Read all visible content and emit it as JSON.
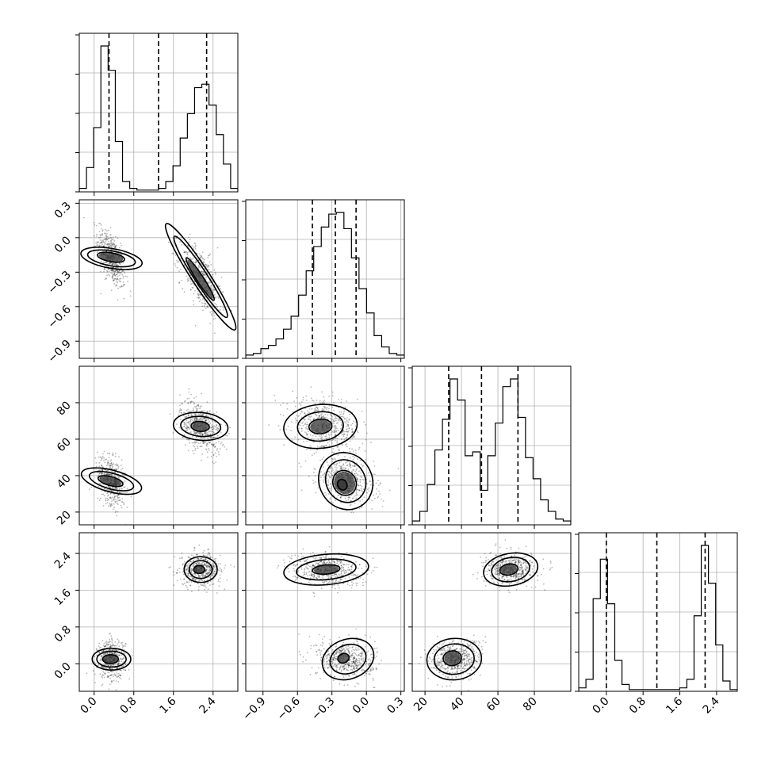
{
  "chart_data": {
    "type": "corner",
    "grid": true,
    "quantile_lines": "dashed",
    "parameters": [
      {
        "index": 0,
        "range": [
          -0.3,
          2.9
        ],
        "ticks": [
          "0.0",
          "0.8",
          "1.6",
          "2.4"
        ],
        "tick_values": [
          0.0,
          0.8,
          1.6,
          2.4
        ],
        "quantiles": [
          0.3,
          1.3,
          2.27
        ]
      },
      {
        "index": 1,
        "range": [
          -1.05,
          0.33
        ],
        "ticks": [
          "−0.9",
          "−0.6",
          "−0.3",
          "0.0",
          "0.3"
        ],
        "tick_values": [
          -0.9,
          -0.6,
          -0.3,
          0.0,
          0.3
        ],
        "quantiles": [
          -0.47,
          -0.27,
          -0.09
        ]
      },
      {
        "index": 2,
        "range": [
          13,
          100
        ],
        "ticks": [
          "20",
          "40",
          "60",
          "80"
        ],
        "tick_values": [
          20,
          40,
          60,
          80
        ],
        "quantiles": [
          33,
          51,
          71
        ]
      },
      {
        "index": 3,
        "range": [
          -0.6,
          2.85
        ],
        "ticks": [
          "0.0",
          "0.8",
          "1.6",
          "2.4"
        ],
        "tick_values": [
          0.0,
          0.8,
          1.6,
          2.4
        ],
        "quantiles": [
          0.0,
          1.1,
          2.15
        ]
      }
    ],
    "histograms": [
      {
        "param": 0,
        "values": [
          2,
          14,
          37,
          84,
          70,
          29,
          6,
          2,
          1,
          1,
          1,
          2,
          6,
          15,
          31,
          45,
          60,
          62,
          50,
          33,
          16,
          2
        ]
      },
      {
        "param": 1,
        "values": [
          2,
          3,
          6,
          8,
          12,
          18,
          26,
          39,
          54,
          69,
          81,
          89,
          90,
          80,
          62,
          43,
          28,
          14,
          7,
          3,
          2
        ]
      },
      {
        "param": 2,
        "values": [
          2,
          7,
          21,
          39,
          55,
          76,
          65,
          36,
          38,
          18,
          36,
          53,
          72,
          76,
          56,
          35,
          24,
          13,
          7,
          3,
          2
        ]
      },
      {
        "param": 3,
        "values": [
          2,
          7,
          54,
          77,
          51,
          18,
          4,
          1,
          1,
          1,
          1,
          1,
          1,
          1,
          2,
          7,
          44,
          85,
          63,
          27,
          6,
          1
        ]
      }
    ],
    "clusters": [
      {
        "mean": [
          0.35,
          -0.18,
          37,
          0.1
        ],
        "sd": [
          0.12,
          0.11,
          6,
          0.18
        ]
      },
      {
        "mean": [
          2.15,
          -0.35,
          67,
          2.05
        ],
        "sd": [
          0.18,
          0.13,
          6,
          0.15
        ]
      }
    ],
    "pair_contours": [
      {
        "col": 0,
        "row": 1,
        "levels": [
          {
            "cx": 0.35,
            "cy": -0.18,
            "rx": 0.2,
            "ry": 0.27,
            "deg": -80
          },
          {
            "cx": 0.35,
            "cy": -0.18,
            "rx": 0.15,
            "ry": 0.21,
            "deg": -80
          },
          {
            "cx": 0.34,
            "cy": -0.17,
            "rx": 0.09,
            "ry": 0.12,
            "deg": -80
          },
          {
            "cx": 2.15,
            "cy": -0.34,
            "rx": 0.18,
            "ry": 0.55,
            "deg": -33
          },
          {
            "cx": 2.15,
            "cy": -0.34,
            "rx": 0.13,
            "ry": 0.42,
            "deg": -33
          },
          {
            "cx": 2.14,
            "cy": -0.36,
            "rx": 0.07,
            "ry": 0.22,
            "deg": -33
          }
        ]
      },
      {
        "col": 0,
        "row": 2,
        "levels": [
          {
            "cx": 0.35,
            "cy": 37,
            "rx": 0.22,
            "ry": 17,
            "deg": -75
          },
          {
            "cx": 0.35,
            "cy": 37,
            "rx": 0.16,
            "ry": 12.5,
            "deg": -75
          },
          {
            "cx": 0.33,
            "cy": 37,
            "rx": 0.09,
            "ry": 7,
            "deg": -75
          },
          {
            "cx": 2.15,
            "cy": 67,
            "rx": 0.28,
            "ry": 15,
            "deg": -85
          },
          {
            "cx": 2.15,
            "cy": 67,
            "rx": 0.2,
            "ry": 11,
            "deg": -85
          },
          {
            "cx": 2.14,
            "cy": 67,
            "rx": 0.1,
            "ry": 5,
            "deg": -85
          }
        ]
      },
      {
        "col": 1,
        "row": 2,
        "levels": [
          {
            "cx": -0.4,
            "cy": 67,
            "rx": 0.32,
            "ry": 12,
            "deg": -5
          },
          {
            "cx": -0.4,
            "cy": 67,
            "rx": 0.2,
            "ry": 8,
            "deg": -5
          },
          {
            "cx": -0.4,
            "cy": 67,
            "rx": 0.1,
            "ry": 4,
            "deg": -5
          },
          {
            "cx": -0.18,
            "cy": 37,
            "rx": 0.23,
            "ry": 16,
            "deg": -30
          },
          {
            "cx": -0.18,
            "cy": 37,
            "rx": 0.17,
            "ry": 12,
            "deg": -30
          },
          {
            "cx": -0.19,
            "cy": 36,
            "rx": 0.1,
            "ry": 7,
            "deg": -30
          },
          {
            "cx": -0.21,
            "cy": 35,
            "rx": 0.04,
            "ry": 3,
            "deg": -30
          }
        ]
      },
      {
        "col": 0,
        "row": 3,
        "levels": [
          {
            "cx": 0.35,
            "cy": 0.1,
            "rx": 0.22,
            "ry": 0.42,
            "deg": -90
          },
          {
            "cx": 0.35,
            "cy": 0.1,
            "rx": 0.16,
            "ry": 0.32,
            "deg": -90
          },
          {
            "cx": 0.33,
            "cy": 0.1,
            "rx": 0.09,
            "ry": 0.17,
            "deg": -90
          },
          {
            "cx": 2.15,
            "cy": 2.05,
            "rx": 0.26,
            "ry": 0.36,
            "deg": -90
          },
          {
            "cx": 2.15,
            "cy": 2.05,
            "rx": 0.18,
            "ry": 0.25,
            "deg": -90
          },
          {
            "cx": 2.12,
            "cy": 2.05,
            "rx": 0.08,
            "ry": 0.12,
            "deg": -90
          }
        ]
      },
      {
        "col": 1,
        "row": 3,
        "levels": [
          {
            "cx": -0.35,
            "cy": 2.05,
            "rx": 0.37,
            "ry": 0.33,
            "deg": -5
          },
          {
            "cx": -0.35,
            "cy": 2.05,
            "rx": 0.26,
            "ry": 0.22,
            "deg": -5
          },
          {
            "cx": -0.35,
            "cy": 2.05,
            "rx": 0.12,
            "ry": 0.1,
            "deg": -5
          },
          {
            "cx": -0.16,
            "cy": 0.1,
            "rx": 0.23,
            "ry": 0.43,
            "deg": -20
          },
          {
            "cx": -0.16,
            "cy": 0.1,
            "rx": 0.16,
            "ry": 0.31,
            "deg": -20
          },
          {
            "cx": -0.2,
            "cy": 0.12,
            "rx": 0.05,
            "ry": 0.1,
            "deg": -20
          }
        ]
      },
      {
        "col": 2,
        "row": 3,
        "levels": [
          {
            "cx": 67,
            "cy": 2.05,
            "rx": 15,
            "ry": 0.35,
            "deg": -10
          },
          {
            "cx": 67,
            "cy": 2.05,
            "rx": 10.5,
            "ry": 0.26,
            "deg": -10
          },
          {
            "cx": 66,
            "cy": 2.05,
            "rx": 5,
            "ry": 0.12,
            "deg": -10
          },
          {
            "cx": 36,
            "cy": 0.1,
            "rx": 15,
            "ry": 0.45,
            "deg": -5
          },
          {
            "cx": 36,
            "cy": 0.1,
            "rx": 11,
            "ry": 0.33,
            "deg": -5
          },
          {
            "cx": 35,
            "cy": 0.12,
            "rx": 5,
            "ry": 0.16,
            "deg": -5
          }
        ]
      }
    ]
  }
}
